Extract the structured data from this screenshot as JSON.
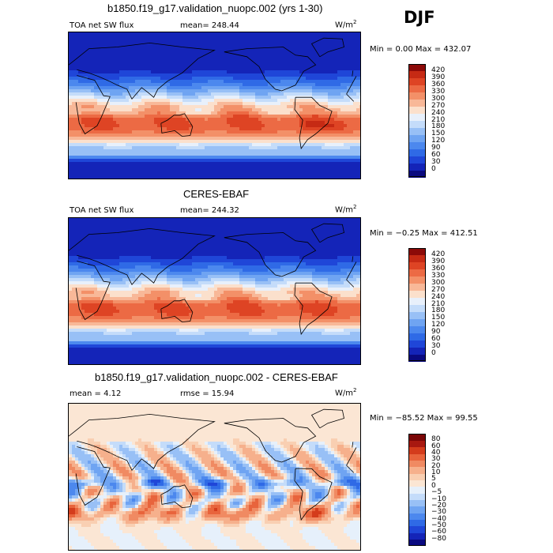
{
  "season": "DJF",
  "panels": [
    {
      "title": "b1850.f19_g17.validation_nuopc.002 (yrs 1-30)",
      "variable": "TOA net SW flux",
      "stat_left": "mean=  248.44",
      "stat_right": "",
      "units": "W/m",
      "units_sup": "2",
      "minmax": "Min =    0.00 Max = 432.07"
    },
    {
      "title": "CERES-EBAF",
      "variable": "TOA net SW flux",
      "stat_left": "mean=  244.32",
      "stat_right": "",
      "units": "W/m",
      "units_sup": "2",
      "minmax": "Min =  −0.25 Max = 412.51"
    },
    {
      "title": "b1850.f19_g17.validation_nuopc.002 - CERES-EBAF",
      "variable": "",
      "stat_left": "mean =   4.12",
      "stat_right": "rmse =  15.94",
      "units": "W/m",
      "units_sup": "2",
      "minmax": "Min = −85.52 Max =  99.55"
    }
  ],
  "chart_data": [
    {
      "type": "heatmap",
      "title": "b1850.f19_g17.validation_nuopc.002 (yrs 1-30)",
      "field": "TOA net SW flux",
      "units": "W/m2",
      "mean": 248.44,
      "min": 0.0,
      "max": 432.07,
      "colorbar_levels": [
        0,
        30,
        60,
        90,
        120,
        150,
        180,
        210,
        240,
        270,
        300,
        330,
        360,
        390,
        420
      ],
      "colorbar_colors": [
        "#0a0a80",
        "#1424b8",
        "#1f46d8",
        "#2f6ae6",
        "#4c88ee",
        "#6fa4f2",
        "#98c0f6",
        "#c4dcfa",
        "#e8f0fb",
        "#fbe0cc",
        "#f8b898",
        "#f39068",
        "#ec6a44",
        "#de4424",
        "#c62a14",
        "#8c0a08"
      ]
    },
    {
      "type": "heatmap",
      "title": "CERES-EBAF",
      "field": "TOA net SW flux",
      "units": "W/m2",
      "mean": 244.32,
      "min": -0.25,
      "max": 412.51,
      "colorbar_levels": [
        0,
        30,
        60,
        90,
        120,
        150,
        180,
        210,
        240,
        270,
        300,
        330,
        360,
        390,
        420
      ],
      "colorbar_colors": [
        "#0a0a80",
        "#1424b8",
        "#1f46d8",
        "#2f6ae6",
        "#4c88ee",
        "#6fa4f2",
        "#98c0f6",
        "#c4dcfa",
        "#e8f0fb",
        "#fbe0cc",
        "#f8b898",
        "#f39068",
        "#ec6a44",
        "#de4424",
        "#c62a14",
        "#8c0a08"
      ]
    },
    {
      "type": "heatmap",
      "title": "b1850.f19_g17.validation_nuopc.002 - CERES-EBAF",
      "units": "W/m2",
      "mean": 4.12,
      "rmse": 15.94,
      "min": -85.52,
      "max": 99.55,
      "colorbar_levels": [
        -80,
        -60,
        -50,
        -40,
        -30,
        -20,
        -10,
        -5,
        0,
        5,
        10,
        20,
        30,
        40,
        60,
        80
      ],
      "colorbar_colors": [
        "#0a0a80",
        "#1424b8",
        "#1f46d8",
        "#2f6ae6",
        "#4c88ee",
        "#6fa4f2",
        "#98c0f6",
        "#c4dcfa",
        "#e6f0fb",
        "#fbe6d4",
        "#f9cfb2",
        "#f6b08c",
        "#f08a62",
        "#e8643c",
        "#d43c1c",
        "#a81810",
        "#7a0606"
      ]
    }
  ]
}
